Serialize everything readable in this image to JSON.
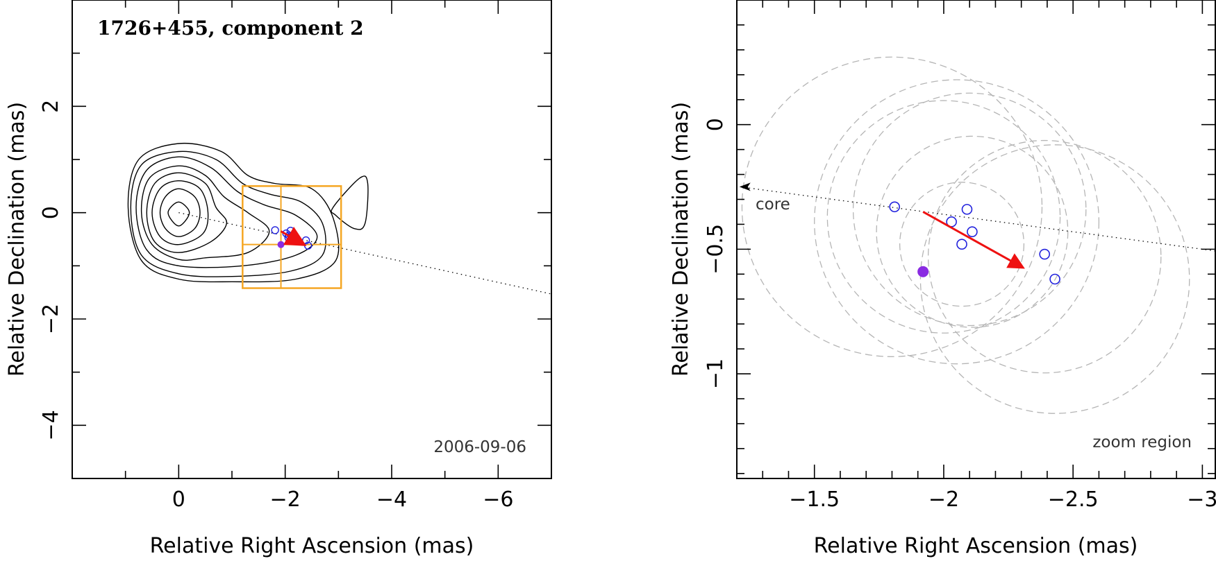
{
  "chart_data": [
    {
      "type": "contour",
      "title": "1726+455, component 2",
      "epoch": "2006-09-06",
      "xlabel": "Relative Right Ascension (mas)",
      "ylabel": "Relative Declination (mas)",
      "xlim": [
        2.0,
        -7.0
      ],
      "ylim": [
        -5.0,
        4.0
      ],
      "x_ticks": [
        0,
        -2,
        -4,
        -6
      ],
      "x_tick_labels": [
        "0",
        "−2",
        "−4",
        "−6"
      ],
      "y_ticks": [
        2,
        0,
        -2,
        -4
      ],
      "y_tick_labels": [
        "2",
        "0",
        "−2",
        "−4"
      ],
      "contour_color": "#000000",
      "contours": [
        [
          [
            0.2,
            0
          ],
          [
            0,
            0.2
          ],
          [
            -0.2,
            0
          ],
          [
            0,
            -0.25
          ]
        ],
        [
          [
            0.35,
            0
          ],
          [
            0.25,
            0.3
          ],
          [
            0,
            0.45
          ],
          [
            -0.3,
            0.3
          ],
          [
            -0.4,
            0
          ],
          [
            -0.3,
            -0.3
          ],
          [
            0,
            -0.45
          ],
          [
            0.25,
            -0.3
          ]
        ],
        [
          [
            0.5,
            0
          ],
          [
            0.35,
            0.45
          ],
          [
            0,
            0.6
          ],
          [
            -0.4,
            0.45
          ],
          [
            -0.55,
            0
          ],
          [
            -0.45,
            -0.4
          ],
          [
            0,
            -0.6
          ],
          [
            0.35,
            -0.45
          ]
        ],
        [
          [
            0.6,
            0
          ],
          [
            0.45,
            0.55
          ],
          [
            0,
            0.75
          ],
          [
            -0.5,
            0.55
          ],
          [
            -0.7,
            0.1
          ],
          [
            -0.9,
            -0.2
          ],
          [
            -0.6,
            -0.55
          ],
          [
            0,
            -0.75
          ],
          [
            0.45,
            -0.55
          ]
        ],
        [
          [
            0.7,
            0
          ],
          [
            0.55,
            0.65
          ],
          [
            0,
            0.88
          ],
          [
            -0.5,
            0.7
          ],
          [
            -0.85,
            0.3
          ],
          [
            -1.3,
            0
          ],
          [
            -1.7,
            -0.35
          ],
          [
            -1.3,
            -0.75
          ],
          [
            -0.5,
            -0.85
          ],
          [
            0,
            -0.88
          ],
          [
            0.5,
            -0.6
          ]
        ],
        [
          [
            0.8,
            0.1
          ],
          [
            0.6,
            0.8
          ],
          [
            0,
            1.05
          ],
          [
            -0.6,
            0.85
          ],
          [
            -1.1,
            0.4
          ],
          [
            -1.6,
            0.15
          ],
          [
            -2.2,
            -0.05
          ],
          [
            -2.6,
            -0.45
          ],
          [
            -2.2,
            -0.8
          ],
          [
            -1.2,
            -1.0
          ],
          [
            0,
            -1.0
          ],
          [
            0.6,
            -0.7
          ]
        ],
        [
          [
            0.9,
            0.1
          ],
          [
            0.7,
            0.9
          ],
          [
            0,
            1.15
          ],
          [
            -0.7,
            1.0
          ],
          [
            -1.2,
            0.55
          ],
          [
            -1.7,
            0.35
          ],
          [
            -2.3,
            0.2
          ],
          [
            -2.7,
            -0.2
          ],
          [
            -2.7,
            -0.8
          ],
          [
            -2.1,
            -1.1
          ],
          [
            -1.0,
            -1.2
          ],
          [
            0,
            -1.15
          ],
          [
            0.7,
            -0.8
          ]
        ],
        [
          [
            0.95,
            0.1
          ],
          [
            0.75,
            1.0
          ],
          [
            0,
            1.3
          ],
          [
            -0.8,
            1.15
          ],
          [
            -1.3,
            0.7
          ],
          [
            -1.8,
            0.55
          ],
          [
            -2.5,
            0.45
          ],
          [
            -2.9,
            -0.1
          ],
          [
            -2.95,
            -0.9
          ],
          [
            -2.2,
            -1.25
          ],
          [
            -1.0,
            -1.3
          ],
          [
            0,
            -1.25
          ],
          [
            0.7,
            -0.9
          ]
        ],
        [
          [
            -2.9,
            0.1
          ],
          [
            -3.4,
            0.65
          ],
          [
            -3.55,
            0.55
          ],
          [
            -3.5,
            -0.2
          ],
          [
            -3.3,
            -0.3
          ],
          [
            -2.95,
            -0.05
          ]
        ]
      ],
      "jet_axis": {
        "start": [
          0,
          0
        ],
        "end": [
          -7.0,
          -1.53
        ],
        "style": "dotted"
      },
      "zoom_box": {
        "x": [
          -1.2,
          -3.05
        ],
        "y": [
          0.5,
          -1.42
        ],
        "x_mid": -1.92,
        "y_mid": -0.6,
        "color": "#f5a623"
      },
      "modelfit_positions": {
        "marker": "open-circle",
        "color": "#2222dd",
        "x": [
          -1.81,
          -2.02,
          -2.1,
          -2.06,
          -2.39,
          -2.43,
          -2.07
        ],
        "y": [
          -0.33,
          -0.39,
          -0.34,
          -0.47,
          -0.52,
          -0.62,
          -0.43
        ]
      },
      "mean_position": {
        "x": -1.92,
        "y": -0.6,
        "marker": "filled-circle",
        "color": "#8a2be2"
      },
      "velocity_vector": {
        "from": [
          -1.92,
          -0.35
        ],
        "to": [
          -2.3,
          -0.57
        ],
        "color": "#ee1111"
      }
    },
    {
      "type": "scatter",
      "note": "zoom region",
      "xlabel": "Relative Right Ascension (mas)",
      "ylabel": "Relative Declination (mas)",
      "xlim": [
        -1.2,
        -3.05
      ],
      "ylim": [
        -1.42,
        0.5
      ],
      "x_ticks": [
        -1.5,
        -2,
        -2.5,
        -3
      ],
      "x_tick_labels": [
        "−1.5",
        "−2",
        "−2.5",
        "−3"
      ],
      "y_ticks": [
        0,
        -0.5,
        -1
      ],
      "y_tick_labels": [
        "0",
        "−0.5",
        "−1"
      ],
      "points": {
        "marker": "open-circle",
        "color": "#2222dd",
        "x": [
          -1.81,
          -2.03,
          -2.09,
          -2.11,
          -2.07,
          -2.39,
          -2.43
        ],
        "y": [
          -0.33,
          -0.39,
          -0.34,
          -0.43,
          -0.48,
          -0.52,
          -0.62
        ]
      },
      "mean_position": {
        "x": -1.92,
        "y": -0.59,
        "marker": "filled-circle",
        "color": "#8a2be2"
      },
      "velocity_vector": {
        "from": [
          -1.92,
          -0.35
        ],
        "to": [
          -2.3,
          -0.57
        ],
        "color": "#ee1111"
      },
      "uncertainty_circles": {
        "color": "#b5b5b5",
        "style": "dashed",
        "circles": [
          {
            "cx": -1.8,
            "cy": -0.33,
            "r": 0.58
          },
          {
            "cx": -2.0,
            "cy": -0.37,
            "r": 0.45
          },
          {
            "cx": -2.05,
            "cy": -0.39,
            "r": 0.55
          },
          {
            "cx": -2.1,
            "cy": -0.34,
            "r": 0.45
          },
          {
            "cx": -2.11,
            "cy": -0.43,
            "r": 0.37
          },
          {
            "cx": -2.07,
            "cy": -0.48,
            "r": 0.24
          },
          {
            "cx": -2.39,
            "cy": -0.53,
            "r": 0.45
          },
          {
            "cx": -2.43,
            "cy": -0.62,
            "r": 0.52
          }
        ]
      },
      "core": {
        "label": "core",
        "direction_from": [
          -2.0,
          -0.36
        ],
        "marker": "arrowhead"
      },
      "jet_axis": {
        "style": "dotted"
      }
    }
  ]
}
